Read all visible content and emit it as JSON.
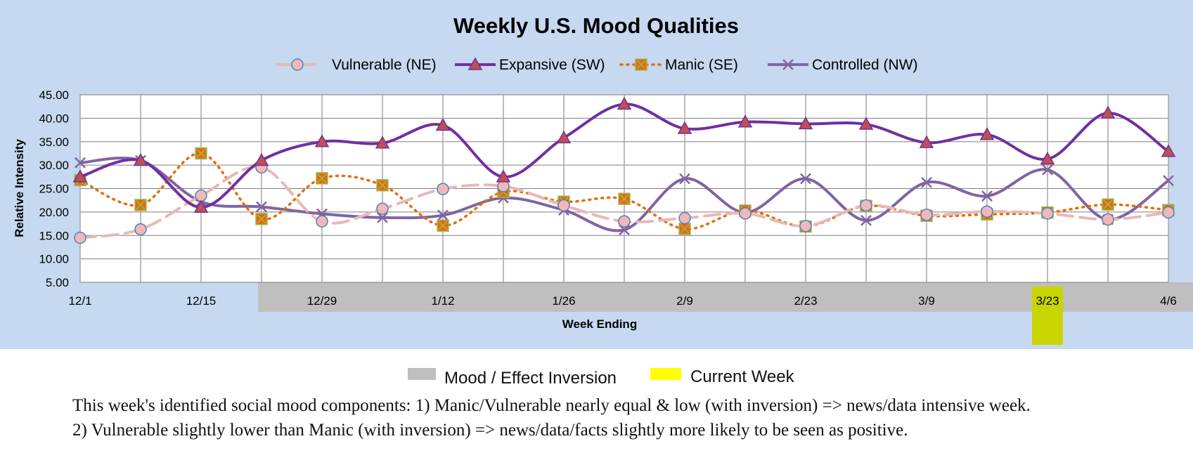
{
  "chart_data": {
    "type": "line",
    "title": "Weekly U.S. Mood Qualities",
    "xlabel": "Week Ending",
    "ylabel": "Relative Intensity",
    "ylim": [
      5,
      45
    ],
    "y_ticks": [
      "5.00",
      "10.00",
      "15.00",
      "20.00",
      "25.00",
      "30.00",
      "35.00",
      "40.00",
      "45.00"
    ],
    "x": [
      "12/1",
      "12/8",
      "12/15",
      "12/22",
      "12/29",
      "1/5",
      "1/12",
      "1/19",
      "1/26",
      "2/2",
      "2/9",
      "2/16",
      "2/23",
      "3/2",
      "3/9",
      "3/16",
      "3/23",
      "3/30",
      "4/6"
    ],
    "x_tick_labels": [
      "12/1",
      "12/15",
      "12/29",
      "1/12",
      "1/26",
      "2/9",
      "2/23",
      "3/9",
      "3/23",
      "4/6"
    ],
    "grid": true,
    "legend_position": "top",
    "series": [
      {
        "name": "Vulnerable (NE)",
        "color": "#e6b9b8",
        "marker": "circle",
        "line": "dash",
        "values": [
          14.5,
          16.3,
          23.5,
          29.5,
          18.0,
          20.7,
          24.9,
          25.5,
          21.4,
          18.0,
          18.7,
          19.7,
          17.0,
          21.4,
          19.4,
          20.1,
          19.7,
          18.4,
          19.9
        ]
      },
      {
        "name": "Expansive (SW)",
        "color": "#7030a0",
        "marker": "triangle",
        "line": "solid",
        "values": [
          27.5,
          31.0,
          21.0,
          31.0,
          35.0,
          34.7,
          38.5,
          27.5,
          35.8,
          43.0,
          37.8,
          39.2,
          38.8,
          38.7,
          34.8,
          36.5,
          31.3,
          41.1,
          32.9
        ]
      },
      {
        "name": "Manic (SE)",
        "color": "#e36c09",
        "marker": "square-x",
        "line": "dot",
        "values": [
          26.8,
          21.5,
          32.5,
          18.5,
          27.2,
          25.7,
          17.1,
          24.3,
          22.2,
          22.8,
          16.4,
          20.3,
          16.9,
          21.3,
          19.2,
          19.5,
          19.9,
          21.6,
          20.4
        ]
      },
      {
        "name": "Controlled (NW)",
        "color": "#8064a2",
        "marker": "x",
        "line": "solid",
        "values": [
          30.5,
          31.0,
          22.2,
          21.1,
          19.6,
          18.8,
          19.3,
          23.0,
          20.4,
          16.2,
          27.1,
          19.9,
          27.1,
          18.2,
          26.3,
          23.4,
          29.0,
          18.4,
          26.7
        ]
      }
    ],
    "shaded_regions": [
      {
        "label": "Mood / Effect Inversion",
        "color": "#bfbfbf",
        "from": "12/22",
        "to": "4/6"
      }
    ],
    "current_week": {
      "label": "Current Week",
      "color": "#c9d500",
      "week": "3/23"
    }
  },
  "key": {
    "inversion_label": "Mood / Effect Inversion",
    "current_week_label": "Current Week"
  },
  "caption": {
    "line1": "This week's identified social mood components: 1) Manic/Vulnerable nearly equal & low (with inversion) => news/data intensive week.",
    "line2": "2) Vulnerable slightly lower than Manic (with inversion) => news/data/facts slightly more likely to be seen as positive."
  }
}
